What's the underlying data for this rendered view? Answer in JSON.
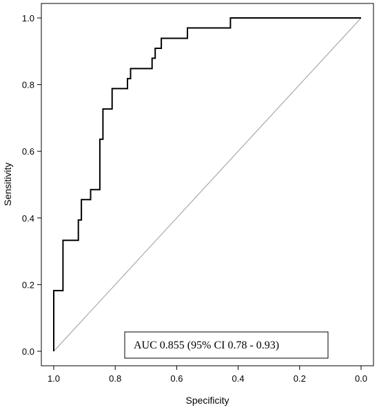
{
  "chart_data": {
    "type": "line",
    "title": "",
    "xlabel": "Specificity",
    "ylabel": "Sensitivity",
    "x_reversed": true,
    "xlim": [
      1.0,
      0.0
    ],
    "ylim": [
      0.0,
      1.0
    ],
    "xticks": [
      1.0,
      0.8,
      0.6,
      0.4,
      0.2,
      0.0
    ],
    "xtick_labels": [
      "1.0",
      "0.8",
      "0.6",
      "0.4",
      "0.2",
      "0.0"
    ],
    "yticks": [
      0.0,
      0.2,
      0.4,
      0.6,
      0.8,
      1.0
    ],
    "ytick_labels": [
      "0.0",
      "0.2",
      "0.4",
      "0.6",
      "0.8",
      "1.0"
    ],
    "grid": false,
    "annotation": "AUC 0.855 (95% CI 0.78 - 0.93)",
    "series": [
      {
        "type": "step",
        "color": "#000000",
        "x": [
          1.0,
          1.0,
          0.97,
          0.97,
          0.92,
          0.92,
          0.91,
          0.91,
          0.88,
          0.88,
          0.85,
          0.85,
          0.84,
          0.84,
          0.81,
          0.81,
          0.76,
          0.76,
          0.75,
          0.75,
          0.68,
          0.68,
          0.67,
          0.67,
          0.65,
          0.65,
          0.565,
          0.565,
          0.425,
          0.425,
          0.0
        ],
        "y": [
          0.0,
          0.182,
          0.182,
          0.333,
          0.333,
          0.394,
          0.394,
          0.455,
          0.455,
          0.485,
          0.485,
          0.636,
          0.636,
          0.727,
          0.727,
          0.788,
          0.788,
          0.818,
          0.818,
          0.848,
          0.848,
          0.879,
          0.879,
          0.909,
          0.909,
          0.939,
          0.939,
          0.97,
          0.97,
          1.0,
          1.0
        ]
      },
      {
        "type": "reference",
        "color": "#999999",
        "x": [
          1.0,
          0.0
        ],
        "y": [
          0.0,
          1.0
        ]
      }
    ]
  }
}
